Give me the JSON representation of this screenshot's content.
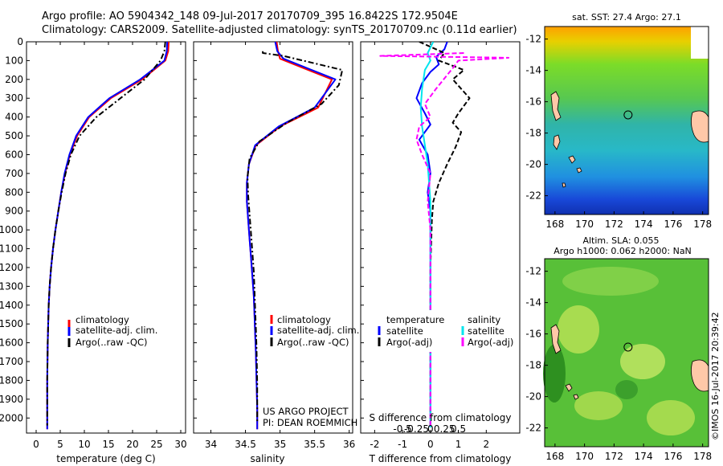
{
  "header": {
    "line1": "Argo profile: AO 5904342_148 09-Jul-2017 20170709_395 16.8422S 172.9504E",
    "line2": "Climatology: CARS2009. Satellite-adjusted climatology: synTS_20170709.nc (0.11d earlier)"
  },
  "colors": {
    "climatology": "#ff0000",
    "satellite": "#0000ff",
    "argo": "#000000",
    "salinity_satellite": "#00e5ee",
    "salinity_argo": "#ff00ff",
    "land": "#ffc8a8"
  },
  "credits": {
    "project": "US ARGO PROJECT",
    "pi": "PI: DEAN ROEMMICH",
    "imos": "©IMOS 16-Jul-2017 20:39:42"
  },
  "chart_data": [
    {
      "id": "temperature",
      "type": "line",
      "xlabel": "temperature (deg C)",
      "ylabel": "",
      "xlim": [
        -2,
        31
      ],
      "ylim": [
        2080,
        0
      ],
      "xticks": [
        0,
        5,
        10,
        15,
        20,
        25,
        30
      ],
      "yticks": [
        0,
        100,
        200,
        300,
        400,
        500,
        600,
        700,
        800,
        900,
        1000,
        1100,
        1200,
        1300,
        1400,
        1500,
        1600,
        1700,
        1800,
        1900,
        2000
      ],
      "legend": [
        "climatology",
        "satellite-adj. clim.",
        "Argo(..raw -QC)"
      ],
      "series": [
        {
          "name": "climatology",
          "color": "#ff0000",
          "style": "solid",
          "x": [
            27.5,
            27.4,
            26.8,
            22,
            15.5,
            11,
            8.5,
            7,
            6,
            5.2,
            4.6,
            4.0,
            3.5,
            3.1,
            2.8,
            2.6,
            2.5,
            2.4,
            2.3,
            2.3,
            2.3
          ],
          "y": [
            0,
            50,
            100,
            200,
            300,
            400,
            500,
            600,
            700,
            800,
            900,
            1000,
            1100,
            1200,
            1300,
            1400,
            1500,
            1600,
            1800,
            2000,
            2060
          ]
        },
        {
          "name": "satellite-adj. clim.",
          "color": "#0000ff",
          "style": "solid",
          "x": [
            27.2,
            27.1,
            26.6,
            21.6,
            15.2,
            10.8,
            8.3,
            6.9,
            5.9,
            5.2,
            4.6,
            4.0,
            3.5,
            3.1,
            2.8,
            2.6,
            2.5,
            2.4,
            2.3,
            2.3,
            2.3
          ],
          "y": [
            0,
            50,
            100,
            200,
            300,
            400,
            500,
            600,
            700,
            800,
            900,
            1000,
            1100,
            1200,
            1300,
            1400,
            1500,
            1600,
            1800,
            2000,
            2060
          ]
        },
        {
          "name": "Argo(..raw -QC)",
          "color": "#000000",
          "style": "dashdot",
          "x": [
            26.8,
            26.6,
            25.8,
            22.5,
            17.5,
            12.5,
            9,
            7.2,
            6.1,
            5.3,
            4.6,
            4.0,
            3.5,
            3.1,
            2.8,
            2.6,
            2.5,
            2.4,
            2.3,
            2.3,
            2.3
          ],
          "y": [
            0,
            50,
            100,
            200,
            300,
            400,
            500,
            600,
            700,
            800,
            900,
            1000,
            1100,
            1200,
            1300,
            1400,
            1500,
            1600,
            1800,
            2000,
            2040
          ]
        }
      ]
    },
    {
      "id": "salinity",
      "type": "line",
      "xlabel": "salinity",
      "xlim": [
        33.75,
        36.05
      ],
      "ylim": [
        2080,
        0
      ],
      "xticks": [
        34,
        34.5,
        35,
        35.5,
        36
      ],
      "legend": [
        "climatology",
        "satellite-adj. clim.",
        "Argo(..raw -QC)"
      ],
      "series": [
        {
          "name": "climatology",
          "color": "#ff0000",
          "style": "solid",
          "x": [
            34.95,
            34.97,
            35.0,
            35.75,
            35.55,
            35.0,
            34.65,
            34.55,
            34.52,
            34.52,
            34.54,
            34.56,
            34.58,
            34.6,
            34.62,
            34.63,
            34.64,
            34.65,
            34.66,
            34.67,
            34.67
          ],
          "y": [
            0,
            50,
            90,
            200,
            350,
            450,
            550,
            650,
            750,
            850,
            950,
            1050,
            1150,
            1250,
            1350,
            1450,
            1550,
            1650,
            1800,
            1950,
            2060
          ]
        },
        {
          "name": "satellite-adj. clim.",
          "color": "#0000ff",
          "style": "solid",
          "x": [
            34.93,
            34.96,
            35.05,
            35.8,
            35.5,
            34.98,
            34.64,
            34.55,
            34.52,
            34.52,
            34.54,
            34.56,
            34.58,
            34.6,
            34.62,
            34.63,
            34.64,
            34.65,
            34.66,
            34.67,
            34.67
          ],
          "y": [
            0,
            50,
            90,
            200,
            350,
            450,
            550,
            650,
            750,
            850,
            950,
            1050,
            1150,
            1250,
            1350,
            1450,
            1550,
            1650,
            1800,
            1950,
            2060
          ]
        },
        {
          "name": "Argo(..raw -QC)",
          "color": "#000000",
          "style": "dashdot",
          "x": [
            34.75,
            34.75,
            35.05,
            35.9,
            35.85,
            35.6,
            35.1,
            34.7,
            34.56,
            34.53,
            34.54,
            34.56,
            34.58,
            34.6,
            34.62,
            34.63,
            34.64,
            34.65,
            34.66,
            34.67,
            34.67
          ],
          "y": [
            50,
            60,
            75,
            150,
            230,
            330,
            430,
            530,
            620,
            720,
            820,
            920,
            1020,
            1120,
            1220,
            1320,
            1420,
            1520,
            1620,
            1820,
            2020
          ]
        }
      ]
    },
    {
      "id": "difference",
      "type": "line",
      "xlabel": "T difference from climatology",
      "xlabel_top": "S difference from climatology",
      "xlim": [
        -2.5,
        3.2
      ],
      "ylim": [
        2080,
        0
      ],
      "xticks": [
        -2,
        -1,
        0,
        1,
        2
      ],
      "xticks_top": [
        -0.5,
        -0.25,
        0,
        0.25,
        0.5
      ],
      "legend_headers": [
        "temperature",
        "salinity"
      ],
      "legend_t": [
        "satellite",
        "Argo(-adj)"
      ],
      "legend_s": [
        "satellite",
        "Argo(-adj)"
      ],
      "series": [
        {
          "name": "T satellite",
          "color": "#0000ff",
          "style": "solid",
          "x": [
            0.6,
            0.5,
            0.2,
            0.3,
            0,
            -0.3,
            -0.5,
            -0.2,
            0,
            -0.4,
            -0.1,
            0,
            -0.1,
            0,
            0,
            0,
            0,
            0
          ],
          "y": [
            0,
            40,
            80,
            120,
            160,
            220,
            300,
            380,
            440,
            520,
            600,
            700,
            800,
            900,
            1200,
            1500,
            1800,
            2050
          ]
        },
        {
          "name": "T Argo(-adj)",
          "color": "#000000",
          "style": "dashed",
          "x": [
            -0.4,
            0.5,
            0.3,
            1.2,
            0.8,
            1.4,
            1.0,
            0.8,
            1.1,
            0.9,
            0.6,
            0.3,
            0.1,
            0.05,
            0,
            0,
            0
          ],
          "y": [
            0,
            60,
            100,
            150,
            200,
            300,
            380,
            430,
            480,
            560,
            650,
            750,
            850,
            950,
            1200,
            1600,
            2050
          ]
        },
        {
          "name": "S satellite",
          "color": "#00e5ee",
          "style": "solid",
          "x": [
            0.1,
            -0.1,
            0,
            -0.2,
            -0.3,
            -0.35,
            -0.3,
            -0.2,
            -0.1,
            -0.05,
            0,
            0,
            0,
            0
          ],
          "y": [
            0,
            60,
            100,
            150,
            250,
            350,
            450,
            550,
            650,
            750,
            850,
            1000,
            1500,
            2050
          ]
        },
        {
          "name": "S Argo(-adj)",
          "color": "#ff00ff",
          "style": "dashed",
          "x": [
            1.2,
            -1.8,
            2.8,
            1.0,
            0.8,
            0.2,
            -0.2,
            0,
            -0.4,
            -0.5,
            -0.3,
            0,
            -0.1,
            0,
            0,
            0
          ],
          "y": [
            60,
            75,
            85,
            100,
            140,
            250,
            330,
            400,
            450,
            520,
            600,
            700,
            850,
            1000,
            1500,
            2050
          ]
        }
      ]
    }
  ],
  "maps": [
    {
      "id": "sst-map",
      "title": "sat. SST: 27.4 Argo: 27.1",
      "xticks": [
        168,
        170,
        172,
        174,
        176,
        178
      ],
      "yticks": [
        -12,
        -14,
        -16,
        -18,
        -20,
        -22
      ],
      "marker": {
        "lon": 172.95,
        "lat": -16.84
      }
    },
    {
      "id": "sla-map",
      "title": "Altim. SLA: 0.055",
      "subtitle": "Argo h1000: 0.062 h2000: NaN",
      "xticks": [
        168,
        170,
        172,
        174,
        176,
        178
      ],
      "yticks": [
        -12,
        -14,
        -16,
        -18,
        -20,
        -22
      ],
      "marker": {
        "lon": 172.95,
        "lat": -16.84
      }
    }
  ]
}
